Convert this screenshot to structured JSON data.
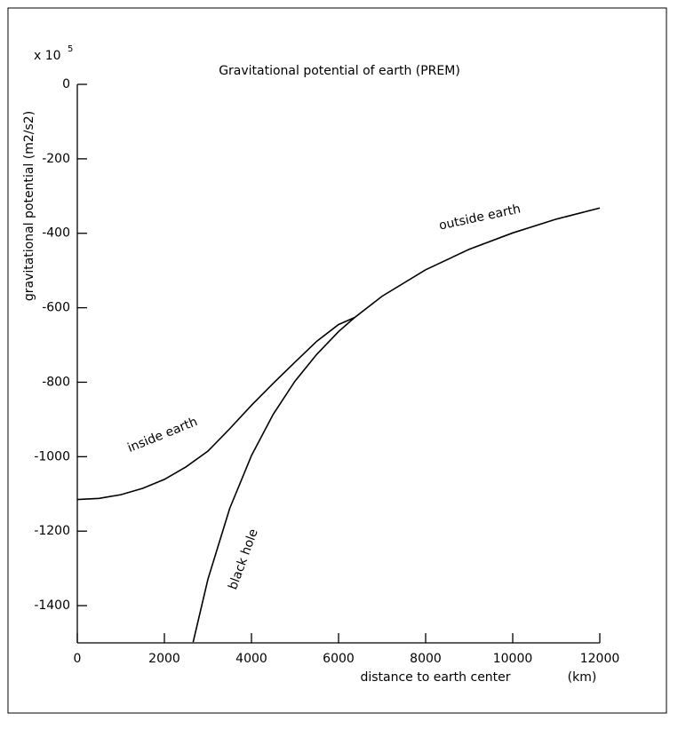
{
  "chart_data": {
    "type": "line",
    "title": "Gravitational potential of earth (PREM)",
    "x_label": "distance to earth center",
    "x_unit": "(km)",
    "y_label": "gravitational potential (m2/s2)",
    "y_multiplier": "x 10",
    "y_multiplier_exp": "5",
    "xlim": [
      0,
      12000
    ],
    "xticks": [
      0,
      2000,
      4000,
      6000,
      8000,
      10000,
      12000
    ],
    "ylim": [
      -1500,
      0
    ],
    "yticks": [
      0,
      -200,
      -400,
      -600,
      -800,
      -1000,
      -1200,
      -1400
    ],
    "series": [
      {
        "color": "#000000",
        "x": [
          0,
          500,
          1000,
          1500,
          2000,
          2500,
          3000,
          3500,
          4000,
          4500,
          5000,
          5500,
          6000,
          6371,
          7000,
          8000,
          9000,
          10000,
          11000,
          12000
        ],
        "values": [
          -1115,
          -1112,
          -1102,
          -1085,
          -1061,
          -1027,
          -985,
          -925,
          -862,
          -803,
          -746,
          -690,
          -645,
          -626,
          -569,
          -498,
          -443,
          -399,
          -362,
          -332
        ]
      },
      {
        "color": "#000000",
        "x": [
          2660,
          3000,
          3500,
          4000,
          4500,
          5000,
          5500,
          6000,
          6371
        ],
        "values": [
          -1498,
          -1329,
          -1139,
          -997,
          -886,
          -797,
          -725,
          -664,
          -626
        ]
      }
    ],
    "annotations": [
      "inside earth",
      "outside earth",
      "black hole"
    ]
  }
}
